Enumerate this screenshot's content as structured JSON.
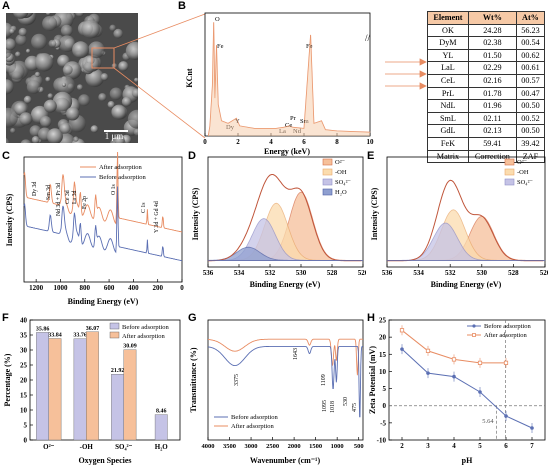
{
  "panel_letters": [
    "A",
    "B",
    "C",
    "D",
    "E",
    "F",
    "G",
    "H"
  ],
  "sem": {
    "scale_label": "1 μm"
  },
  "chart_data": [
    {
      "id": "B",
      "type": "line",
      "title": "",
      "xlabel": "Energy (keV)",
      "ylabel": "KCnt",
      "xlim": [
        0,
        10
      ],
      "xticks": [
        0,
        2,
        4,
        6,
        8,
        10
      ],
      "series": [
        {
          "values": [
            [
              0.3,
              8
            ],
            [
              0.45,
              40
            ],
            [
              0.53,
              90
            ],
            [
              0.6,
              30
            ],
            [
              0.7,
              72
            ],
            [
              0.8,
              25
            ],
            [
              1.0,
              12
            ],
            [
              1.4,
              10
            ],
            [
              1.9,
              14
            ],
            [
              2.1,
              8
            ],
            [
              3,
              6
            ],
            [
              4.3,
              6
            ],
            [
              4.8,
              7
            ],
            [
              5.1,
              8
            ],
            [
              5.3,
              7
            ],
            [
              6.0,
              6
            ],
            [
              6.4,
              80
            ],
            [
              6.6,
              10
            ],
            [
              7.06,
              12
            ],
            [
              7.3,
              5
            ],
            [
              8,
              4
            ],
            [
              10,
              3
            ]
          ]
        }
      ],
      "annotations": [
        "O",
        "Fe",
        "Dy",
        "Y",
        "La",
        "Ce",
        "Nd",
        "Pr",
        "Sm",
        "Fe"
      ],
      "color": "#e88c62"
    },
    {
      "id": "C",
      "type": "line",
      "title": "",
      "xlabel": "Binding Energy (eV)",
      "ylabel": "Intensity (CPS)",
      "xlim": [
        1300,
        0
      ],
      "xticks": [
        1200,
        1000,
        800,
        600,
        400,
        200,
        0
      ],
      "legend": [
        "After adsorption",
        "Before adsorption"
      ],
      "legend_position": "top-right",
      "colors": [
        "#e88c62",
        "#5b6fb3"
      ],
      "annotations": [
        "Dy 3d",
        "Sm 3d",
        "Nd 3d + Pr 3d",
        "Ce 3d",
        "La 3d",
        "Fe 2p",
        "O 1s",
        "C 1s",
        "Y 3d + Gd 4d"
      ]
    },
    {
      "id": "D",
      "type": "area",
      "title": "",
      "xlabel": "Binding Energy (eV)",
      "ylabel": "Intensity (CPS)",
      "xlim": [
        536,
        526
      ],
      "xticks": [
        536,
        534,
        532,
        530,
        528,
        526
      ],
      "legend": [
        "O²⁻",
        "-OH",
        "SO₄²⁻",
        "H₂O"
      ],
      "legend_position": "top-right",
      "peaks": [
        {
          "name": "O²⁻",
          "center": 530.0,
          "height": 0.62
        },
        {
          "name": "-OH",
          "center": 531.6,
          "height": 0.52
        },
        {
          "name": "SO₄²⁻",
          "center": 532.4,
          "height": 0.38
        },
        {
          "name": "H₂O",
          "center": 533.4,
          "height": 0.12
        }
      ]
    },
    {
      "id": "E",
      "type": "area",
      "title": "",
      "xlabel": "Binding Energy (eV)",
      "ylabel": "Intensity (CPS)",
      "xlim": [
        536,
        526
      ],
      "xticks": [
        536,
        534,
        532,
        530,
        528,
        526
      ],
      "legend": [
        "O²⁻",
        "-OH",
        "SO₄²⁻"
      ],
      "legend_position": "top-right",
      "peaks": [
        {
          "name": "O²⁻",
          "center": 530.0,
          "height": 0.4
        },
        {
          "name": "-OH",
          "center": 531.8,
          "height": 0.46
        },
        {
          "name": "SO₄²⁻",
          "center": 532.3,
          "height": 0.34
        }
      ]
    },
    {
      "id": "F",
      "type": "bar",
      "title": "",
      "xlabel": "Oxygen Species",
      "ylabel": "Percentage (%)",
      "ylim": [
        0,
        40
      ],
      "yticks": [
        0,
        5,
        10,
        15,
        20,
        25,
        30,
        35,
        40
      ],
      "categories": [
        "O²⁻",
        "-OH",
        "SO₄²⁻",
        "H₂O"
      ],
      "series": [
        {
          "name": "Before adsorption",
          "values": [
            35.86,
            33.76,
            21.92,
            8.46
          ],
          "color": "#c5c3e6"
        },
        {
          "name": "After adsorption",
          "values": [
            33.84,
            36.07,
            30.09,
            null
          ],
          "color": "#f6c09a"
        }
      ],
      "legend_position": "top-right"
    },
    {
      "id": "G",
      "type": "line",
      "title": "",
      "xlabel": "Wavenumber (cm⁻¹)",
      "ylabel": "Transmittance (%)",
      "xlim": [
        4000,
        400
      ],
      "xticks": [
        4000,
        3500,
        3000,
        2500,
        2000,
        1500,
        1000,
        500
      ],
      "legend": [
        "Before adsorption",
        "After adsorption"
      ],
      "legend_position": "bottom-left",
      "colors": [
        "#5b6fb3",
        "#e88c62"
      ],
      "annotations": [
        "3375",
        "1643",
        "1109",
        "1095",
        "1018",
        "530",
        "475"
      ]
    },
    {
      "id": "H",
      "type": "line",
      "title": "",
      "xlabel": "pH",
      "ylabel": "Zeta Potential (mV)",
      "xlim": [
        1.5,
        7.5
      ],
      "ylim": [
        -10,
        25
      ],
      "xticks": [
        2,
        3,
        4,
        5,
        6,
        7
      ],
      "yticks": [
        -10,
        -5,
        0,
        5,
        10,
        15,
        20,
        25
      ],
      "series": [
        {
          "name": "Before adsorption",
          "x": [
            2,
            3,
            4,
            5,
            6,
            7
          ],
          "values": [
            16.5,
            9.5,
            8.5,
            4.0,
            -3.0,
            -6.5
          ],
          "color": "#5b6fb3"
        },
        {
          "name": "After adsorption",
          "x": [
            2,
            3,
            4,
            5,
            6
          ],
          "values": [
            22.0,
            16.0,
            13.5,
            12.5,
            12.5
          ],
          "color": "#e88c62"
        }
      ],
      "annotations": [
        "5.64"
      ],
      "legend_position": "top-right"
    }
  ],
  "table_b": {
    "headers": [
      "Element",
      "Wt%",
      "At%"
    ],
    "rows": [
      [
        "OK",
        "24.28",
        "56.23"
      ],
      [
        "DyM",
        "02.38",
        "00.54"
      ],
      [
        "YL",
        "01.50",
        "00.62"
      ],
      [
        "LaL",
        "02.29",
        "00.61"
      ],
      [
        "CeL",
        "02.16",
        "00.57"
      ],
      [
        "PrL",
        "01.78",
        "00.47"
      ],
      [
        "NdL",
        "01.96",
        "00.50"
      ],
      [
        "SmL",
        "02.11",
        "00.52"
      ],
      [
        "GdL",
        "02.13",
        "00.50"
      ],
      [
        "FeK",
        "59.41",
        "39.42"
      ],
      [
        "Matrix",
        "Correction",
        "ZAF"
      ]
    ]
  }
}
